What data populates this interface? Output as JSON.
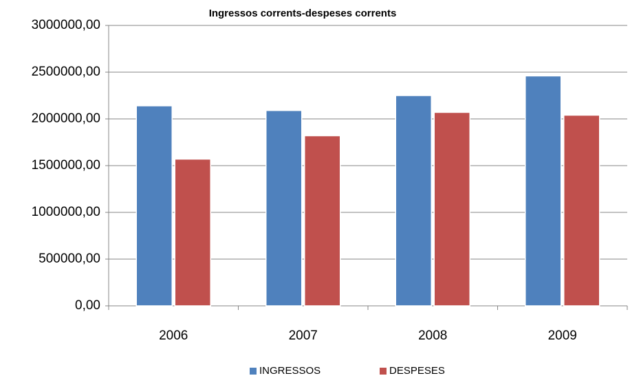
{
  "chart_data": {
    "type": "bar",
    "title": "Ingressos corrents-despeses corrents",
    "categories": [
      "2006",
      "2007",
      "2008",
      "2009"
    ],
    "series": [
      {
        "name": "INGRESSOS",
        "color": "#4f81bd",
        "values": [
          2140000,
          2090000,
          2250000,
          2460000
        ]
      },
      {
        "name": "DESPESES",
        "color": "#c0504d",
        "values": [
          1570000,
          1820000,
          2070000,
          2040000
        ]
      }
    ],
    "ylim": [
      0,
      3000000
    ],
    "yticks": [
      {
        "value": 0,
        "label": "0,00"
      },
      {
        "value": 500000,
        "label": "500000,00"
      },
      {
        "value": 1000000,
        "label": "1000000,00"
      },
      {
        "value": 1500000,
        "label": "1500000,00"
      },
      {
        "value": 2000000,
        "label": "2000000,00"
      },
      {
        "value": 2500000,
        "label": "2500000,00"
      },
      {
        "value": 3000000,
        "label": "3000000,00"
      }
    ],
    "grid": true,
    "legend": "bottom"
  }
}
